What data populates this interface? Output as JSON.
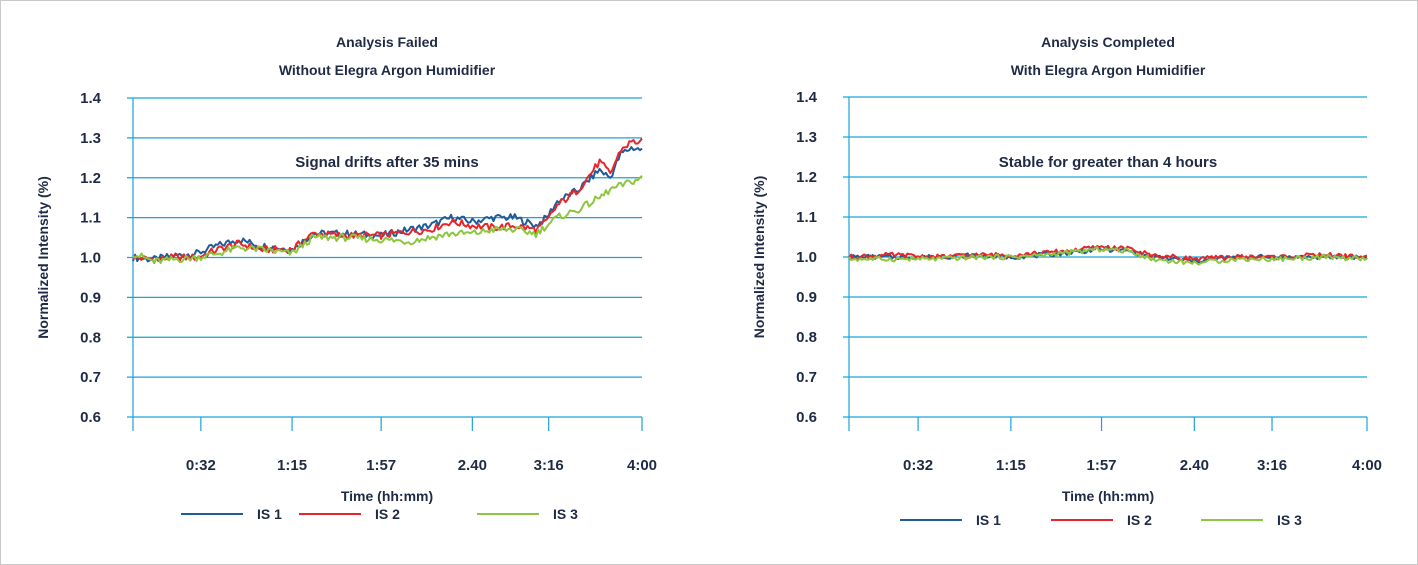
{
  "chart_data": [
    {
      "type": "line",
      "title": "Analysis Failed",
      "subtitle": "Without Elegra Argon Humidifier",
      "xlabel": "Time (hh:mm)",
      "ylabel": "Normalized Intensity (%)",
      "ylim": [
        0.6,
        1.4
      ],
      "yticks": [
        "0.6",
        "0.7",
        "0.8",
        "0.9",
        "1.0",
        "1.1",
        "1.2",
        "1.3",
        "1.4"
      ],
      "xlim": [
        0,
        240
      ],
      "xtick_values": [
        32,
        75,
        117,
        160,
        196,
        240
      ],
      "xtick_labels": [
        "0:32",
        "1:15",
        "1:57",
        "2.40",
        "3:16",
        "4:00"
      ],
      "annotation": "Signal drifts after 35 mins",
      "grid": "horizontal",
      "legend": "bottom",
      "series": [
        {
          "name": "IS 1",
          "color": "#1f5c99",
          "x": [
            0,
            10,
            20,
            30,
            40,
            50,
            60,
            75,
            85,
            100,
            117,
            130,
            140,
            150,
            160,
            170,
            180,
            190,
            195,
            200,
            210,
            220,
            225,
            230,
            235,
            240
          ],
          "y": [
            1.0,
            0.995,
            1.005,
            1.01,
            1.03,
            1.045,
            1.03,
            1.02,
            1.06,
            1.06,
            1.055,
            1.07,
            1.08,
            1.1,
            1.09,
            1.1,
            1.1,
            1.08,
            1.1,
            1.14,
            1.17,
            1.22,
            1.2,
            1.26,
            1.275,
            1.27
          ]
        },
        {
          "name": "IS 2",
          "color": "#e8252b",
          "x": [
            0,
            10,
            20,
            30,
            40,
            50,
            60,
            75,
            85,
            100,
            117,
            130,
            140,
            150,
            160,
            170,
            180,
            190,
            195,
            200,
            210,
            220,
            225,
            230,
            235,
            240
          ],
          "y": [
            1.0,
            0.995,
            1.0,
            1.0,
            1.02,
            1.035,
            1.02,
            1.02,
            1.06,
            1.055,
            1.055,
            1.065,
            1.07,
            1.09,
            1.08,
            1.075,
            1.08,
            1.07,
            1.09,
            1.13,
            1.17,
            1.24,
            1.21,
            1.27,
            1.29,
            1.29
          ]
        },
        {
          "name": "IS 3",
          "color": "#8dc63f",
          "x": [
            0,
            10,
            20,
            30,
            40,
            50,
            60,
            75,
            85,
            100,
            117,
            130,
            140,
            150,
            160,
            170,
            180,
            190,
            195,
            200,
            210,
            220,
            225,
            230,
            235,
            240
          ],
          "y": [
            1.01,
            0.99,
            0.995,
            1.0,
            1.01,
            1.025,
            1.02,
            1.01,
            1.05,
            1.05,
            1.045,
            1.04,
            1.05,
            1.06,
            1.06,
            1.07,
            1.07,
            1.06,
            1.08,
            1.1,
            1.12,
            1.15,
            1.17,
            1.18,
            1.19,
            1.2
          ]
        }
      ]
    },
    {
      "type": "line",
      "title": "Analysis Completed",
      "subtitle": "With Elegra Argon Humidifier",
      "xlabel": "Time (hh:mm)",
      "ylabel": "Normalized Intensity (%)",
      "ylim": [
        0.6,
        1.4
      ],
      "yticks": [
        "0.6",
        "0.7",
        "0.8",
        "0.9",
        "1.0",
        "1.1",
        "1.2",
        "1.3",
        "1.4"
      ],
      "xlim": [
        0,
        240
      ],
      "xtick_values": [
        32,
        75,
        117,
        160,
        196,
        240
      ],
      "xtick_labels": [
        "0:32",
        "1:15",
        "1:57",
        "2.40",
        "3:16",
        "4:00"
      ],
      "annotation": "Stable for greater than 4 hours",
      "grid": "horizontal",
      "legend": "bottom",
      "series": [
        {
          "name": "IS 1",
          "color": "#1f5c99",
          "x": [
            0,
            20,
            40,
            60,
            75,
            90,
            100,
            117,
            130,
            140,
            160,
            180,
            200,
            220,
            240
          ],
          "y": [
            1.0,
            1.0,
            1.0,
            1.005,
            1.0,
            1.005,
            1.01,
            1.02,
            1.015,
            1.0,
            0.99,
            1.0,
            1.0,
            1.0,
            1.0
          ]
        },
        {
          "name": "IS 2",
          "color": "#e8252b",
          "x": [
            0,
            20,
            40,
            60,
            75,
            90,
            100,
            117,
            130,
            140,
            160,
            180,
            200,
            220,
            240
          ],
          "y": [
            1.0,
            1.005,
            1.0,
            1.005,
            1.005,
            1.01,
            1.015,
            1.025,
            1.02,
            1.005,
            0.995,
            1.0,
            1.0,
            1.005,
            1.0
          ]
        },
        {
          "name": "IS 3",
          "color": "#8dc63f",
          "x": [
            0,
            20,
            40,
            60,
            75,
            90,
            100,
            117,
            130,
            140,
            160,
            180,
            200,
            220,
            240
          ],
          "y": [
            0.995,
            0.995,
            0.995,
            1.0,
            1.0,
            1.005,
            1.01,
            1.02,
            1.015,
            0.995,
            0.985,
            0.995,
            0.995,
            1.0,
            0.995
          ]
        }
      ]
    }
  ]
}
